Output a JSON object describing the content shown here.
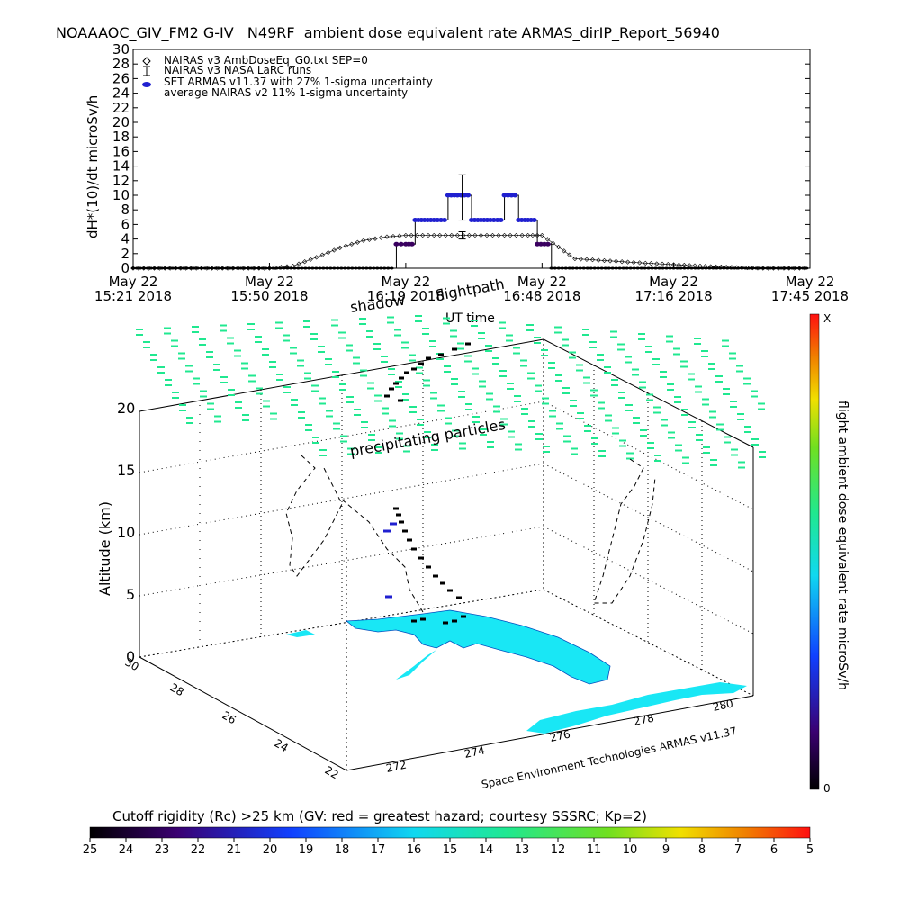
{
  "title": "NOAAAOC_GIV_FM2 G-IV   N49RF  ambient dose equivalent rate ARMAS_dirIP_Report_56940",
  "colors": {
    "cyan_land": "#19e7f5",
    "green_marks": "#20e890",
    "blue_points": "#2020d0",
    "purple_points": "#3a0060",
    "black": "#000000"
  },
  "chart_data": [
    {
      "type": "line",
      "ylabel": "dH*(10)/dt microSv/h",
      "xlabel": "UT time",
      "ylim": [
        0,
        30
      ],
      "yticks": [
        0,
        2,
        4,
        6,
        8,
        10,
        12,
        14,
        16,
        18,
        20,
        22,
        24,
        26,
        28,
        30
      ],
      "xlim": [
        "15:21",
        "17:45"
      ],
      "xtick_labels": [
        {
          "x": "15:21",
          "line1": "May 22",
          "line2": "15:21 2018"
        },
        {
          "x": "15:50",
          "line1": "May 22",
          "line2": "15:50 2018"
        },
        {
          "x": "16:19",
          "line1": "May 22",
          "line2": "16:19 2018"
        },
        {
          "x": "16:48",
          "line1": "May 22",
          "line2": "16:48 2018"
        },
        {
          "x": "17:16",
          "line1": "May 22",
          "line2": "17:16 2018"
        },
        {
          "x": "17:45",
          "line1": "May 22",
          "line2": "17:45 2018"
        }
      ],
      "legend_position": "top-left",
      "legend": [
        "NAIRAS v3 AmbDoseEq_G0.txt SEP=0",
        "NAIRAS v3 NASA LaRC runs",
        "SET ARMAS v11.37 with 27% 1-sigma uncertainty",
        "average NAIRAS v2 11% 1-sigma uncertainty"
      ],
      "series": [
        {
          "name": "NAIRAS v3 AmbDoseEq_G0.txt SEP=0",
          "marker": "diamond",
          "x": [
            "15:21",
            "15:30",
            "15:40",
            "15:50",
            "15:55",
            "16:00",
            "16:05",
            "16:10",
            "16:15",
            "16:19",
            "16:25",
            "16:30",
            "16:35",
            "16:40",
            "16:45",
            "16:48",
            "16:55",
            "17:00",
            "17:05",
            "17:10",
            "17:16",
            "17:25",
            "17:35",
            "17:45"
          ],
          "y": [
            0,
            0,
            0,
            0,
            0.3,
            1.5,
            2.8,
            3.8,
            4.3,
            4.5,
            4.5,
            4.5,
            4.5,
            4.5,
            4.5,
            4.5,
            1.3,
            1.1,
            0.9,
            0.7,
            0.5,
            0.2,
            0,
            0
          ]
        },
        {
          "name": "SET ARMAS v11.37 with 27% 1-sigma uncertainty",
          "marker": "dot",
          "x": [
            "15:21",
            "15:50",
            "16:16",
            "16:17",
            "16:18",
            "16:19",
            "16:21",
            "16:23",
            "16:25",
            "16:28",
            "16:30",
            "16:33",
            "16:35",
            "16:37",
            "16:40",
            "16:43",
            "16:45",
            "16:47",
            "16:50",
            "17:16",
            "17:45"
          ],
          "y": [
            0,
            0,
            0,
            3.3,
            3.3,
            3.3,
            6.6,
            6.6,
            6.6,
            10,
            10,
            6.6,
            6.6,
            6.6,
            10,
            6.6,
            6.6,
            3.3,
            0,
            0,
            0
          ]
        }
      ],
      "error_bars": [
        {
          "x": "16:31",
          "y": 6.6,
          "plus": 6.2,
          "minus": 0
        },
        {
          "x": "16:31",
          "y": 4.5,
          "plus": 0.5,
          "minus": 0.5
        }
      ]
    },
    {
      "type": "scatter",
      "zlabel": "Altitude (km)",
      "zticks": [
        0,
        5,
        10,
        15,
        20
      ],
      "xticks": [
        272,
        274,
        276,
        278,
        280
      ],
      "yticks": [
        22,
        24,
        26,
        28,
        30
      ],
      "annotations": [
        "shadow",
        "flightpath",
        "precipitating particles",
        "Space Environment Technologies ARMAS v11.37"
      ],
      "colorbar_label": "flight ambient dose equivalent rate microSv/h",
      "colorbar_top": "X",
      "colorbar_bottom": "0"
    }
  ],
  "bottom_colorbar": {
    "label": "Cutoff rigidity (Rc) >25 km (GV: red = greatest hazard; courtesy SSSRC; Kp=2)",
    "ticks": [
      "25",
      "24",
      "23",
      "22",
      "21",
      "20",
      "19",
      "18",
      "17",
      "16",
      "15",
      "14",
      "13",
      "12",
      "11",
      "10",
      "9",
      "8",
      "7",
      "6",
      "5"
    ]
  }
}
